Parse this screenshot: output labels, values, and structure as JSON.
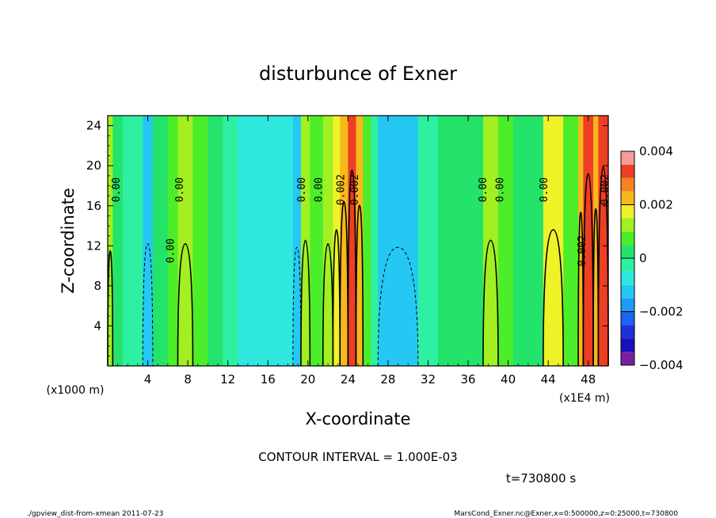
{
  "chart_data": {
    "type": "heatmap",
    "title": "disturbunce of Exner",
    "xlabel": "X-coordinate",
    "ylabel": "Z-coordinate",
    "x_unit_left": "(x1000 m)",
    "x_unit_right": "(x1E4 m)",
    "xlim": [
      0,
      50
    ],
    "ylim": [
      0,
      25
    ],
    "x_ticks": [
      "4",
      "8",
      "12",
      "16",
      "20",
      "24",
      "28",
      "32",
      "36",
      "40",
      "44",
      "48"
    ],
    "y_ticks": [
      "4",
      "8",
      "12",
      "16",
      "20",
      "24"
    ],
    "colorbar": {
      "min": -0.004,
      "max": 0.004,
      "tick_labels": [
        "0.004",
        "0.002",
        "0",
        "−0.002",
        "−0.004"
      ],
      "levels": [
        {
          "from": -0.004,
          "to": -0.0035,
          "color": "#7b1fa2"
        },
        {
          "from": -0.0035,
          "to": -0.003,
          "color": "#1a0fb8"
        },
        {
          "from": -0.003,
          "to": -0.0025,
          "color": "#1f2fd8"
        },
        {
          "from": -0.0025,
          "to": -0.002,
          "color": "#1e64f5"
        },
        {
          "from": -0.002,
          "to": -0.0015,
          "color": "#1e9bf7"
        },
        {
          "from": -0.0015,
          "to": -0.001,
          "color": "#24c8f2"
        },
        {
          "from": -0.001,
          "to": -0.0005,
          "color": "#2ee8e0"
        },
        {
          "from": -0.0005,
          "to": 0.0,
          "color": "#2ef0a2"
        },
        {
          "from": 0.0,
          "to": 0.0005,
          "color": "#24e36a"
        },
        {
          "from": 0.0005,
          "to": 0.001,
          "color": "#4ced2a"
        },
        {
          "from": 0.001,
          "to": 0.0015,
          "color": "#a2ef22"
        },
        {
          "from": 0.0015,
          "to": 0.002,
          "color": "#eef227"
        },
        {
          "from": 0.002,
          "to": 0.0025,
          "color": "#f6b81c"
        },
        {
          "from": 0.0025,
          "to": 0.003,
          "color": "#f5831f"
        },
        {
          "from": 0.003,
          "to": 0.0035,
          "color": "#ee3e24"
        },
        {
          "from": 0.0035,
          "to": 0.004,
          "color": "#f89a9a"
        }
      ]
    },
    "columns": [
      {
        "x0": 0,
        "x1": 0.5,
        "value": 0.001
      },
      {
        "x0": 0.5,
        "x1": 1.5,
        "value": 0.0003
      },
      {
        "x0": 1.5,
        "x1": 3.5,
        "value": -0.0002
      },
      {
        "x0": 3.5,
        "x1": 4.5,
        "value": -0.0012
      },
      {
        "x0": 4.5,
        "x1": 6,
        "value": 0.0002
      },
      {
        "x0": 6,
        "x1": 7,
        "value": 0.0008
      },
      {
        "x0": 7,
        "x1": 8.5,
        "value": 0.0012
      },
      {
        "x0": 8.5,
        "x1": 10,
        "value": 0.0006
      },
      {
        "x0": 10,
        "x1": 11.5,
        "value": 0.0
      },
      {
        "x0": 11.5,
        "x1": 13,
        "value": -0.0004
      },
      {
        "x0": 13,
        "x1": 17,
        "value": -0.0006
      },
      {
        "x0": 17,
        "x1": 18.5,
        "value": -0.0007
      },
      {
        "x0": 18.5,
        "x1": 19.3,
        "value": -0.0011
      },
      {
        "x0": 19.3,
        "x1": 20.2,
        "value": 0.0013
      },
      {
        "x0": 20.2,
        "x1": 21.5,
        "value": 0.0006
      },
      {
        "x0": 21.5,
        "x1": 22.5,
        "value": 0.0012
      },
      {
        "x0": 22.5,
        "x1": 23.2,
        "value": 0.0016
      },
      {
        "x0": 23.2,
        "x1": 24,
        "value": 0.0024
      },
      {
        "x0": 24,
        "x1": 24.8,
        "value": 0.0033
      },
      {
        "x0": 24.8,
        "x1": 25.5,
        "value": 0.0023
      },
      {
        "x0": 25.5,
        "x1": 26.3,
        "value": 0.0009
      },
      {
        "x0": 26.3,
        "x1": 27,
        "value": -0.0004
      },
      {
        "x0": 27,
        "x1": 31,
        "value": -0.0011
      },
      {
        "x0": 31,
        "x1": 33,
        "value": -0.0005
      },
      {
        "x0": 33,
        "x1": 36,
        "value": 0.0002
      },
      {
        "x0": 36,
        "x1": 37.5,
        "value": 0.0004
      },
      {
        "x0": 37.5,
        "x1": 39,
        "value": 0.0013
      },
      {
        "x0": 39,
        "x1": 40.5,
        "value": 0.0007
      },
      {
        "x0": 40.5,
        "x1": 43.5,
        "value": 0.0002
      },
      {
        "x0": 43.5,
        "x1": 45.5,
        "value": 0.0016
      },
      {
        "x0": 45.5,
        "x1": 47,
        "value": 0.0008
      },
      {
        "x0": 47,
        "x1": 47.5,
        "value": 0.0021
      },
      {
        "x0": 47.5,
        "x1": 48.5,
        "value": 0.0032
      },
      {
        "x0": 48.5,
        "x1": 49,
        "value": 0.0022
      },
      {
        "x0": 49,
        "x1": 50,
        "value": 0.0034
      }
    ],
    "contour_labels": [
      {
        "text": "0.00",
        "x": 1.2,
        "z": 17.6
      },
      {
        "text": "0.00",
        "x": 7.5,
        "z": 17.6
      },
      {
        "text": "0.00",
        "x": 6.6,
        "z": 11.5
      },
      {
        "text": "0.00",
        "x": 19.7,
        "z": 17.6
      },
      {
        "text": "0.00",
        "x": 21.4,
        "z": 17.6
      },
      {
        "text": "0.002",
        "x": 23.6,
        "z": 17.6
      },
      {
        "text": "0.002",
        "x": 25.0,
        "z": 17.6
      },
      {
        "text": "0.00",
        "x": 37.8,
        "z": 17.6
      },
      {
        "text": "0.00",
        "x": 39.5,
        "z": 17.6
      },
      {
        "text": "0.00",
        "x": 43.9,
        "z": 17.6
      },
      {
        "text": "0.002",
        "x": 47.7,
        "z": 11.5
      },
      {
        "text": "0.002",
        "x": 50.0,
        "z": 17.6
      }
    ],
    "annotations": {
      "contour_interval": "CONTOUR INTERVAL = 1.000E-03",
      "time": "t=730800 s"
    },
    "footer": {
      "left": "./gpview_dist-from-xmean  2011-07-23",
      "right": "MarsCond_Exner.nc@Exner,x=0:500000,z=0:25000,t=730800"
    },
    "grid": false
  }
}
